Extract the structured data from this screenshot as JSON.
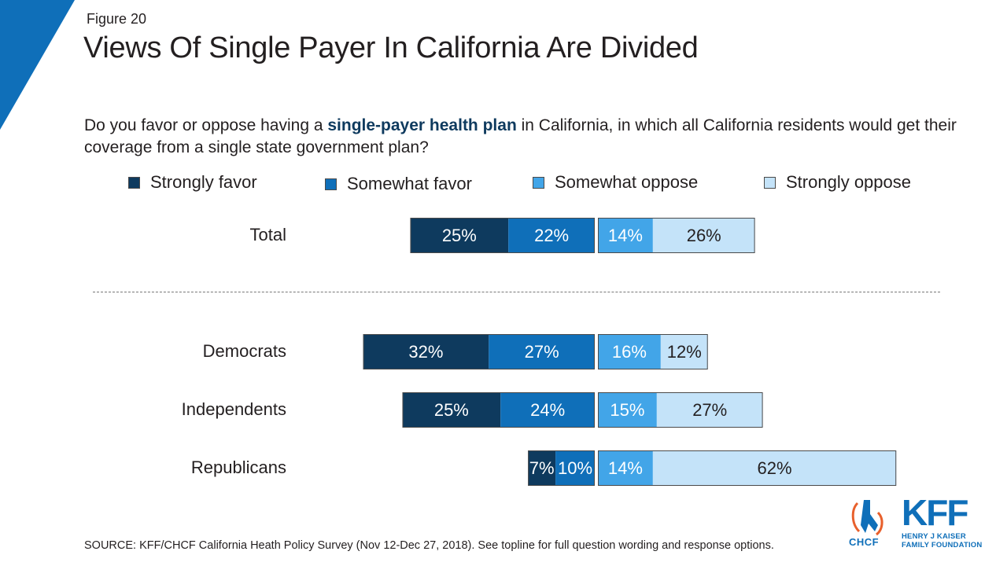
{
  "figure_label": "Figure 20",
  "title": "Views Of Single Payer In California Are Divided",
  "question": {
    "before": "Do you favor or oppose having a ",
    "highlight": "single-payer health plan",
    "after": " in California, in which all California residents would get their coverage from a single state government plan?"
  },
  "source": "SOURCE: KFF/CHCF California Heath Policy Survey (Nov 12-Dec 27, 2018). See topline for full question wording and response options.",
  "logos": {
    "chcf": "CHCF",
    "kff": "KFF",
    "kff_line1": "HENRY J KAISER",
    "kff_line2": "FAMILY FOUNDATION"
  },
  "colors": {
    "strongly_favor": "#0e3a5e",
    "somewhat_favor": "#0f6fb9",
    "somewhat_oppose": "#42a5e8",
    "strongly_oppose": "#c4e3f9",
    "corner": "#0f6fb9"
  },
  "chart_data": {
    "type": "bar",
    "orientation": "horizontal-diverging",
    "categories": [
      "Total",
      "Democrats",
      "Independents",
      "Republicans"
    ],
    "series": [
      {
        "name": "Strongly favor",
        "side": "favor",
        "values": [
          25,
          32,
          25,
          7
        ]
      },
      {
        "name": "Somewhat favor",
        "side": "favor",
        "values": [
          22,
          27,
          24,
          10
        ]
      },
      {
        "name": "Somewhat oppose",
        "side": "oppose",
        "values": [
          14,
          16,
          15,
          14
        ]
      },
      {
        "name": "Strongly oppose",
        "side": "oppose",
        "values": [
          26,
          12,
          27,
          62
        ]
      }
    ],
    "unit": "%",
    "legend_position": "top"
  }
}
